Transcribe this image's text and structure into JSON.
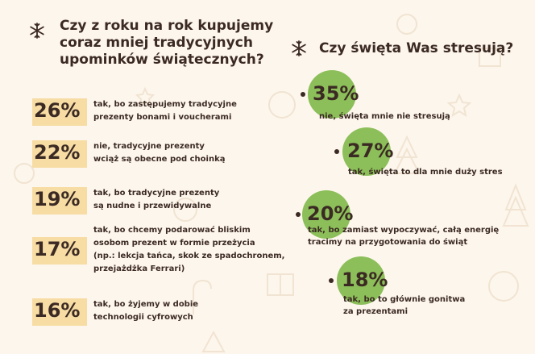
{
  "colors": {
    "background": "#fdf6ec",
    "text": "#3b2a23",
    "highlight": "#f7dca4",
    "bubble": "#8cbf5a",
    "decoration": "#f1e4d2"
  },
  "icons": {
    "section_marker": "snowflake-icon"
  },
  "left_section": {
    "title_lines": [
      "Czy z roku na rok kupujemy",
      "coraz mniej tradycyjnych",
      "upominków świątecznych?"
    ]
  },
  "right_section": {
    "title_lines": [
      "Czy święta Was stresują?"
    ]
  },
  "chart_data": [
    {
      "type": "bar",
      "title": "Czy z roku na rok kupujemy coraz mniej tradycyjnych upominków świątecznych?",
      "unit": "%",
      "items": [
        {
          "value": 26,
          "label": "26%",
          "text_lines": [
            "tak, bo zastępujemy tradycyjne",
            "prezenty bonami i voucherami"
          ]
        },
        {
          "value": 22,
          "label": "22%",
          "text_lines": [
            "nie, tradycyjne prezenty",
            "wciąż są obecne pod choinką"
          ]
        },
        {
          "value": 19,
          "label": "19%",
          "text_lines": [
            "tak, bo tradycyjne prezenty",
            "są nudne i przewidywalne"
          ]
        },
        {
          "value": 17,
          "label": "17%",
          "text_lines": [
            "tak, bo chcemy podarować bliskim",
            "osobom prezent w formie przeżycia",
            "(np.: lekcja tańca, skok ze spadochronem,",
            "przejażdżka Ferrari)"
          ]
        },
        {
          "value": 16,
          "label": "16%",
          "text_lines": [
            "tak, bo żyjemy w dobie",
            "technologii cyfrowych"
          ]
        }
      ]
    },
    {
      "type": "bubble",
      "title": "Czy święta Was stresują?",
      "unit": "%",
      "items": [
        {
          "value": 35,
          "label": "35%",
          "text_lines": [
            "nie, święta mnie nie stresują"
          ]
        },
        {
          "value": 27,
          "label": "27%",
          "text_lines": [
            "tak, święta to dla mnie duży stres"
          ]
        },
        {
          "value": 20,
          "label": "20%",
          "text_lines": [
            "tak, bo zamiast wypoczywać, całą energię",
            "tracimy na przygotowania do świąt"
          ]
        },
        {
          "value": 18,
          "label": "18%",
          "text_lines": [
            "tak, bo to głównie gonitwa",
            "za prezentami"
          ]
        }
      ]
    }
  ]
}
